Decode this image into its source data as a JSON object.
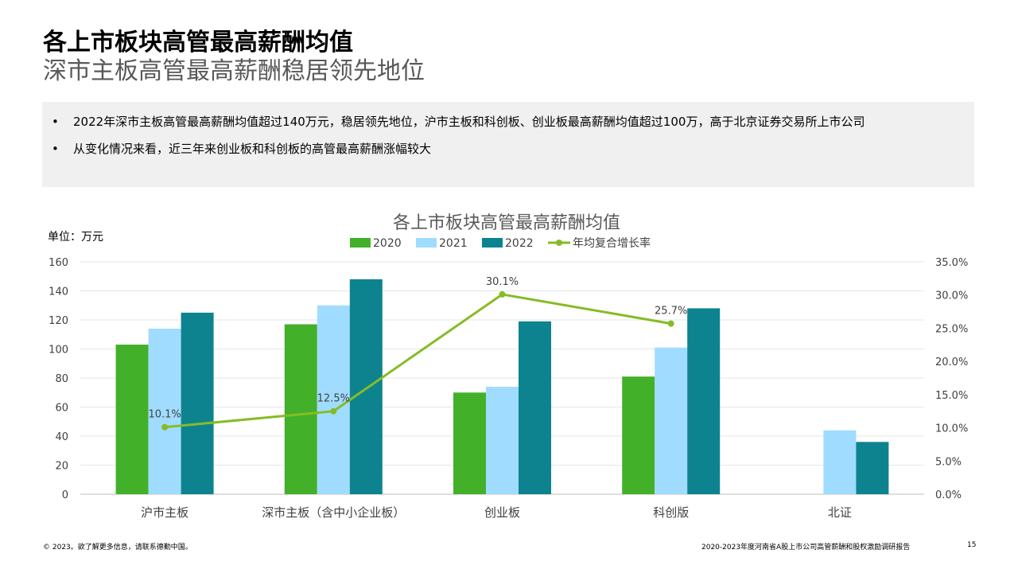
{
  "header": {
    "title": "各上市板块高管最高薪酬均值",
    "subtitle": "深市主板高管最高薪酬稳居领先地位"
  },
  "summary": {
    "bullets": [
      "2022年深市主板高管最高薪酬均值超过140万元，稳居领先地位，沪市主板和科创板、创业板最高薪酬均值超过100万，高于北京证券交易所上市公司",
      "从变化情况来看，近三年来创业板和科创板的高管最高薪酬涨幅较大"
    ]
  },
  "unit_label": "单位：万元",
  "chart_data": {
    "type": "bar",
    "title": "各上市板块高管最高薪酬均值",
    "categories": [
      "沪市主板",
      "深市主板（含中小企业板）",
      "创业板",
      "科创版",
      "北证"
    ],
    "series": [
      {
        "name": "2020",
        "values": [
          103,
          117,
          70,
          81,
          null
        ],
        "color": "#43b02a"
      },
      {
        "name": "2021",
        "values": [
          114,
          130,
          74,
          101,
          44
        ],
        "color": "#a0dcff"
      },
      {
        "name": "2022",
        "values": [
          125,
          148,
          119,
          128,
          36
        ],
        "color": "#0d8390"
      }
    ],
    "line_series": {
      "name": "年均复合增长率",
      "values": [
        0.101,
        0.125,
        0.301,
        0.257,
        null
      ],
      "labels": [
        "10.1%",
        "12.5%",
        "30.1%",
        "25.7%",
        ""
      ],
      "color": "#86bc25",
      "axis": "right"
    },
    "ylim": [
      0,
      160
    ],
    "yticks": [
      "0",
      "20",
      "40",
      "60",
      "80",
      "100",
      "120",
      "140",
      "160"
    ],
    "y2lim": [
      0,
      0.35
    ],
    "y2ticks": [
      "0.0%",
      "5.0%",
      "10.0%",
      "15.0%",
      "20.0%",
      "25.0%",
      "30.0%",
      "35.0%"
    ],
    "legend_position": "top-center",
    "grid": true
  },
  "footer": {
    "copyright": "© 2023。欲了解更多信息，请联系德勤中国。",
    "report": "2020-2023年度河南省A股上市公司高管薪酬和股权激励调研报告",
    "page": "15"
  }
}
